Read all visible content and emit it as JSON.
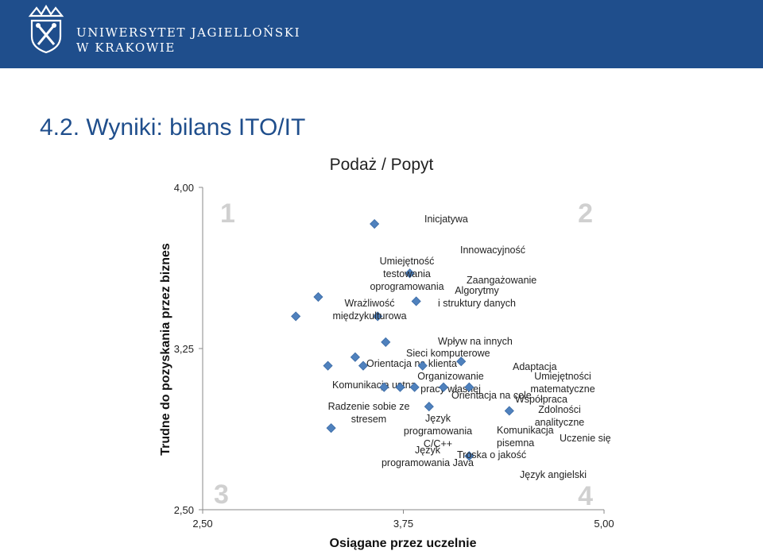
{
  "header": {
    "university_line1": "UNIWERSYTET JAGIELLOŃSKI",
    "university_line2": "W KRAKOWIE",
    "bar_color": "#1f4e8c",
    "emblem_icon": "crown-crossed-scepters-emblem"
  },
  "slide": {
    "title": "4.2. Wyniki: bilans ITO/IT",
    "title_color": "#1f4e8c"
  },
  "chart_data": {
    "type": "scatter",
    "title": "Podaż / Popyt",
    "xlabel": "Osiągane przez uczelnie",
    "ylabel": "Trudne do pozyskania przez biznes",
    "xlim": [
      2.5,
      5.0
    ],
    "ylim": [
      2.5,
      4.0
    ],
    "xticks": [
      "2,50",
      "3,75",
      "5,00"
    ],
    "yticks": [
      "2,50",
      "3,25",
      "4,00"
    ],
    "grid": false,
    "marker": "diamond",
    "marker_color": "#4f81bd",
    "quadrants": [
      "1",
      "2",
      "3",
      "4"
    ],
    "points": [
      {
        "x": 3.57,
        "y": 3.83,
        "label": [
          "Inicjatywa"
        ]
      },
      {
        "x": 3.79,
        "y": 3.6,
        "label": [
          "Innowacyjność"
        ]
      },
      {
        "x": 3.22,
        "y": 3.49,
        "label": [
          "Umiejętność",
          "testowania",
          "oprogramowania"
        ]
      },
      {
        "x": 3.83,
        "y": 3.47,
        "label": [
          "Zaangażowanie"
        ]
      },
      {
        "x": 3.59,
        "y": 3.4,
        "label": [
          "Algorytmy",
          "i struktury danych"
        ]
      },
      {
        "x": 3.08,
        "y": 3.4,
        "label": [
          "Wrażliwość",
          "międzykulturowa"
        ]
      },
      {
        "x": 3.64,
        "y": 3.28,
        "label": [
          "Wpływ na innych"
        ]
      },
      {
        "x": 3.45,
        "y": 3.21,
        "label": [
          "Sieci komputerowe"
        ]
      },
      {
        "x": 4.11,
        "y": 3.19,
        "label": [
          "Adaptacja"
        ]
      },
      {
        "x": 3.28,
        "y": 3.17,
        "label": [
          "Orientacja na klienta"
        ]
      },
      {
        "x": 3.5,
        "y": 3.17,
        "label": [
          "Komunikacja ustna"
        ]
      },
      {
        "x": 3.87,
        "y": 3.17,
        "label": [
          "Organizowanie",
          "pracy własnej"
        ]
      },
      {
        "x": 3.63,
        "y": 3.07,
        "label": [
          "Radzenie sobie ze",
          "stresem"
        ]
      },
      {
        "x": 3.73,
        "y": 3.07,
        "label": [
          "Orientacja na cele"
        ]
      },
      {
        "x": 3.82,
        "y": 3.07,
        "label": [
          "Język",
          "programowania",
          "C/C++"
        ]
      },
      {
        "x": 4.0,
        "y": 3.07,
        "label": [
          "Współpraca"
        ]
      },
      {
        "x": 4.16,
        "y": 3.07,
        "label": [
          "Umiejętności",
          "matematyczne"
        ]
      },
      {
        "x": 3.91,
        "y": 2.98,
        "label": [
          "Komunikacja",
          "pisemna"
        ]
      },
      {
        "x": 4.41,
        "y": 2.96,
        "label": [
          "Uczenie się"
        ]
      },
      {
        "x": 3.3,
        "y": 2.88,
        "label": [
          "Język",
          "programowania Java"
        ]
      },
      {
        "x": 4.16,
        "y": 2.75,
        "label": [
          "Język angielski"
        ]
      },
      {
        "x": null,
        "y": null,
        "label": [
          "Zdolności",
          "analityczne"
        ]
      },
      {
        "x": null,
        "y": null,
        "label": [
          "Troska o jakość"
        ]
      }
    ]
  }
}
